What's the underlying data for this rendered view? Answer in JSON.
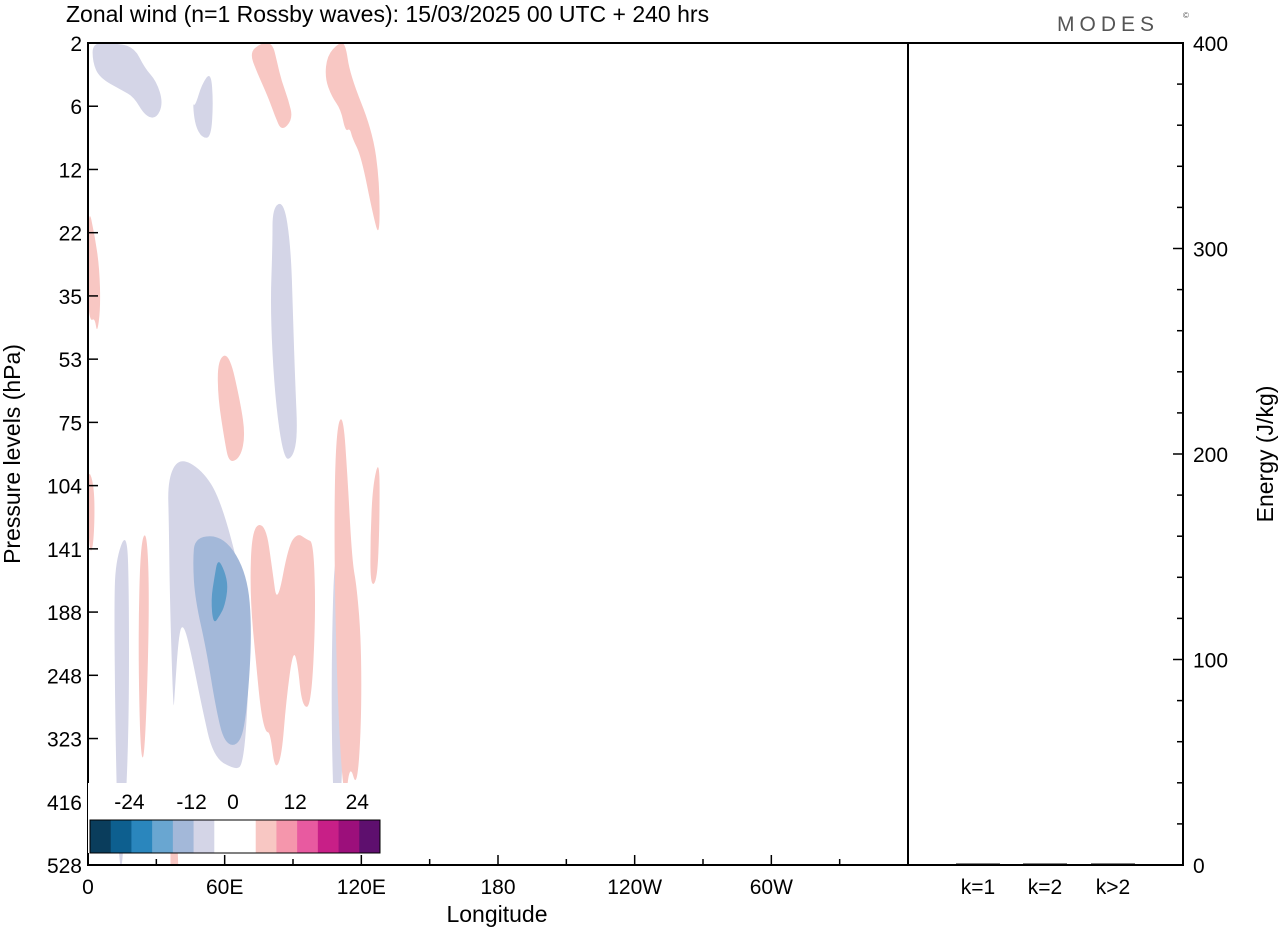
{
  "title": "Zonal wind (n=1 Rossby waves):  15/03/2025  00 UTC  + 240 hrs",
  "logo": "MODES",
  "logo_mark": "©",
  "colors": {
    "neg3": "#5b9bc8",
    "neg2": "#a3b8d9",
    "neg1": "#d4d5e7",
    "pos1": "#f8c7c3",
    "pos2": "#f596ac",
    "scale": [
      "#0a3d5c",
      "#0d5f8f",
      "#2a86bd",
      "#69a6d1",
      "#a3b8d9",
      "#d4d5e7",
      "#ffffff",
      "#ffffff",
      "#f8c7c3",
      "#f596ac",
      "#e85aa0",
      "#c81f87",
      "#9c0f7b",
      "#5e0f6e"
    ]
  },
  "chart_data": [
    {
      "type": "heatmap",
      "xlabel": "Longitude",
      "ylabel": "Pressure levels (hPa)",
      "x_ticks": [
        "0",
        "60E",
        "120E",
        "180",
        "120W",
        "60W"
      ],
      "y_ticks": [
        "2",
        "6",
        "12",
        "22",
        "35",
        "53",
        "75",
        "104",
        "141",
        "188",
        "248",
        "323",
        "416",
        "528"
      ],
      "xlim": [
        0,
        360
      ],
      "colorbar": {
        "tick_labels": [
          "-24",
          "-12",
          "0",
          "12",
          "24"
        ]
      },
      "contours": [
        {
          "level": -3,
          "x": [
            55,
            58,
            60,
            61.5,
            60,
            57,
            55.5,
            54
          ],
          "y": [
            9.2,
            9.05,
            8.9,
            8.6,
            8.35,
            8.15,
            8.45,
            8.8
          ]
        },
        {
          "level": -2,
          "x": [
            47,
            60,
            70,
            72,
            70,
            67,
            60,
            56,
            52,
            47,
            46
          ],
          "y": [
            7.8,
            7.8,
            8.4,
            9.3,
            10.5,
            11.1,
            11.1,
            10.5,
            9.6,
            8.8,
            8.2
          ]
        },
        {
          "level": -1,
          "x": [
            35,
            40,
            50,
            58,
            67,
            71,
            70,
            68,
            65,
            55,
            50,
            45,
            42,
            40,
            38,
            37.5,
            36,
            35.5
          ],
          "y": [
            6.9,
            6.55,
            6.75,
            7.2,
            8.4,
            9.3,
            10.6,
            11.4,
            11.5,
            11.3,
            10.5,
            9.6,
            9.2,
            9.3,
            10.3,
            10.6,
            8.9,
            7.6
          ]
        },
        {
          "level": -1,
          "x": [
            12,
            17,
            18,
            18,
            16,
            14.5,
            13,
            12,
            11.5
          ],
          "y": [
            8.2,
            7.7,
            8.6,
            10.8,
            12.5,
            13.2,
            12.5,
            10.8,
            9.0
          ]
        },
        {
          "level": -1,
          "x": [
            2,
            10,
            20,
            25,
            30,
            33,
            30,
            25,
            20,
            15,
            5,
            2
          ],
          "y": [
            0,
            0,
            0.05,
            0.4,
            0.6,
            0.95,
            1.2,
            1.15,
            0.85,
            0.75,
            0.55,
            0.3
          ]
        },
        {
          "level": -1,
          "x": [
            47,
            50,
            54,
            55,
            54,
            50,
            47,
            46
          ],
          "y": [
            1.0,
            0.65,
            0.45,
            0.95,
            1.5,
            1.5,
            1.3,
            0.95
          ]
        },
        {
          "level": -1,
          "x": [
            81,
            86,
            89,
            90,
            91,
            92,
            90,
            86,
            82,
            80,
            81
          ],
          "y": [
            2.6,
            2.5,
            3.2,
            4.3,
            5.4,
            6.2,
            6.55,
            6.6,
            5.6,
            4.2,
            3.2
          ]
        },
        {
          "level": -1,
          "x": [
            108,
            110,
            112,
            112,
            110,
            108,
            107,
            107
          ],
          "y": [
            8.2,
            8.2,
            9.5,
            11.3,
            12.5,
            12.3,
            11,
            9.6
          ]
        },
        {
          "level": 1,
          "x": [
            57,
            62,
            67,
            69,
            67,
            62,
            60,
            57
          ],
          "y": [
            5.0,
            4.9,
            5.7,
            6.2,
            6.55,
            6.65,
            6.3,
            5.6
          ]
        },
        {
          "level": 1,
          "x": [
            72,
            78,
            81,
            83,
            88,
            92,
            96,
            99,
            100,
            98,
            94,
            92,
            90,
            87,
            85,
            82,
            80,
            78,
            76,
            74,
            71
          ],
          "y": [
            7.65,
            7.6,
            8.35,
            8.9,
            7.95,
            7.75,
            7.85,
            7.9,
            9.0,
            10.5,
            10.5,
            9.8,
            9.6,
            10.4,
            11.3,
            11.5,
            10.9,
            10.9,
            10.6,
            9.9,
            8.7
          ]
        },
        {
          "level": 1,
          "x": [
            109,
            112,
            114,
            116,
            118,
            120,
            120,
            118,
            115,
            113,
            111,
            109,
            108
          ],
          "y": [
            6.1,
            5.85,
            6.9,
            8.2,
            8.6,
            9.5,
            10.8,
            11.8,
            11.4,
            12.0,
            11.4,
            9.8,
            7.6
          ]
        },
        {
          "level": 1,
          "x": [
            125,
            128,
            128,
            127,
            124,
            124
          ],
          "y": [
            7.0,
            6.55,
            7.6,
            8.5,
            8.6,
            7.8
          ]
        },
        {
          "level": 1,
          "x": [
            23,
            26,
            27,
            25,
            23,
            22
          ],
          "y": [
            7.9,
            7.7,
            9.0,
            11.3,
            11.3,
            9.5
          ]
        },
        {
          "level": 1,
          "x": [
            105,
            110,
            113,
            115,
            125,
            128,
            128,
            125,
            120,
            116,
            115,
            113,
            111,
            107,
            104
          ],
          "y": [
            0.2,
            0,
            0,
            0.5,
            1.4,
            2.2,
            3.1,
            2.7,
            1.8,
            1.5,
            1.35,
            1.4,
            1.05,
            0.85,
            0.55
          ]
        },
        {
          "level": 1,
          "x": [
            76,
            81,
            83,
            85,
            88,
            90,
            85,
            82,
            79,
            74,
            71
          ],
          "y": [
            0,
            0,
            0.3,
            0.6,
            0.9,
            1.2,
            1.4,
            1.15,
            0.85,
            0.45,
            0.15
          ]
        },
        {
          "level": 1,
          "x": [
            0,
            3,
            5,
            5.5,
            4,
            3,
            1,
            0
          ],
          "y": [
            2.55,
            3.05,
            3.55,
            4.2,
            4.6,
            4.35,
            4.4,
            4.1
          ]
        },
        {
          "level": 1,
          "x": [
            0,
            2,
            3,
            2.5,
            1,
            0
          ],
          "y": [
            6.75,
            6.9,
            7.25,
            7.9,
            8.1,
            7.6
          ]
        },
        {
          "level": 1,
          "x": [
            36.5,
            39,
            40,
            41.5,
            40,
            37.5,
            36
          ],
          "y": [
            12.5,
            12.3,
            13.5,
            14.0,
            14.0,
            13.5,
            13.0
          ]
        }
      ]
    },
    {
      "type": "bar",
      "categories": [
        "k=1",
        "k=2",
        "k>2"
      ],
      "values": [
        0.5,
        0.3,
        0.5
      ],
      "ylabel": "Energy (J/kg)",
      "ylim": [
        0,
        400
      ],
      "y_ticks": [
        "0",
        "100",
        "200",
        "300",
        "400"
      ]
    }
  ]
}
